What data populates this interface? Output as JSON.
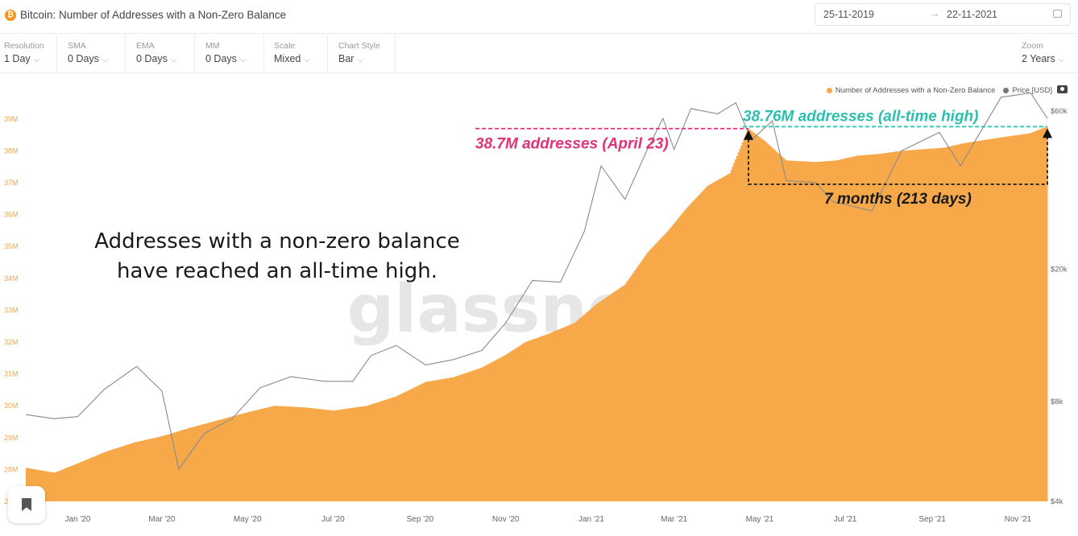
{
  "header": {
    "coin_glyph": "₿",
    "title": "Bitcoin: Number of Addresses with a Non-Zero Balance",
    "date_start": "25-11-2019",
    "date_arrow": "→",
    "date_end": "22-11-2021"
  },
  "controls": [
    {
      "label": "Resolution",
      "value": "1 Day"
    },
    {
      "label": "SMA",
      "value": "0 Days"
    },
    {
      "label": "EMA",
      "value": "0 Days"
    },
    {
      "label": "MM",
      "value": "0 Days"
    },
    {
      "label": "Scale",
      "value": "Mixed"
    },
    {
      "label": "Chart Style",
      "value": "Bar"
    }
  ],
  "zoom": {
    "label": "Zoom",
    "value": "2 Years"
  },
  "legend": [
    {
      "label": "Number of Addresses with a Non-Zero Balance",
      "color": "#f7a94a"
    },
    {
      "label": "Price [USD]",
      "color": "#777777"
    }
  ],
  "icons": [
    "bitcoin-icon",
    "calendar-icon",
    "chevron-down-icon",
    "camera-icon",
    "bookmark-icon"
  ],
  "chart_data": {
    "type": "bar",
    "title": "",
    "legend_position": "top-right",
    "grid": false,
    "watermark": "glassnode",
    "x_ticks": [
      "Jan '20",
      "Mar '20",
      "May '20",
      "Jul '20",
      "Sep '20",
      "Nov '20",
      "Jan '21",
      "Mar '21",
      "May '21",
      "Jul '21",
      "Sep '21",
      "Nov '21"
    ],
    "x_range": [
      "2019-11-25",
      "2021-11-22"
    ],
    "y_left": {
      "ticks": [
        "27M",
        "28M",
        "29M",
        "30M",
        "31M",
        "32M",
        "33M",
        "34M",
        "35M",
        "36M",
        "37M",
        "38M",
        "39M"
      ],
      "range": [
        27,
        39.4
      ],
      "unit": "M"
    },
    "y_right": {
      "ticks": [
        "$4k",
        "$8k",
        "$20k",
        "$60k"
      ],
      "scale": "log",
      "range": [
        4000,
        62000
      ]
    },
    "series": [
      {
        "name": "Number of Addresses with a Non-Zero Balance",
        "type": "bar",
        "color": "#f7a94a",
        "unit": "M",
        "points": [
          [
            "2019-11-25",
            28.05
          ],
          [
            "2019-12-15",
            27.9
          ],
          [
            "2020-01-01",
            28.2
          ],
          [
            "2020-01-20",
            28.55
          ],
          [
            "2020-02-10",
            28.85
          ],
          [
            "2020-03-01",
            29.05
          ],
          [
            "2020-03-20",
            29.3
          ],
          [
            "2020-04-10",
            29.55
          ],
          [
            "2020-05-01",
            29.8
          ],
          [
            "2020-05-20",
            30.0
          ],
          [
            "2020-06-10",
            29.95
          ],
          [
            "2020-07-01",
            29.85
          ],
          [
            "2020-07-25",
            30.0
          ],
          [
            "2020-08-15",
            30.3
          ],
          [
            "2020-09-05",
            30.75
          ],
          [
            "2020-09-25",
            30.9
          ],
          [
            "2020-10-15",
            31.2
          ],
          [
            "2020-11-01",
            31.6
          ],
          [
            "2020-11-15",
            32.0
          ],
          [
            "2020-12-01",
            32.25
          ],
          [
            "2020-12-20",
            32.6
          ],
          [
            "2021-01-05",
            33.2
          ],
          [
            "2021-01-25",
            33.8
          ],
          [
            "2021-02-10",
            34.8
          ],
          [
            "2021-02-25",
            35.5
          ],
          [
            "2021-03-10",
            36.2
          ],
          [
            "2021-03-25",
            36.9
          ],
          [
            "2021-04-10",
            37.3
          ],
          [
            "2021-04-23",
            38.7
          ],
          [
            "2021-05-05",
            38.3
          ],
          [
            "2021-05-20",
            37.7
          ],
          [
            "2021-06-10",
            37.65
          ],
          [
            "2021-06-25",
            37.7
          ],
          [
            "2021-07-10",
            37.85
          ],
          [
            "2021-07-25",
            37.9
          ],
          [
            "2021-08-10",
            38.0
          ],
          [
            "2021-08-25",
            38.05
          ],
          [
            "2021-09-10",
            38.1
          ],
          [
            "2021-09-25",
            38.25
          ],
          [
            "2021-10-10",
            38.35
          ],
          [
            "2021-10-25",
            38.45
          ],
          [
            "2021-11-10",
            38.55
          ],
          [
            "2021-11-22",
            38.76
          ]
        ]
      },
      {
        "name": "Price [USD]",
        "type": "line",
        "color": "#8a8a8a",
        "unit": "USD",
        "points": [
          [
            "2019-11-25",
            7300
          ],
          [
            "2019-12-15",
            7100
          ],
          [
            "2020-01-01",
            7200
          ],
          [
            "2020-01-20",
            8700
          ],
          [
            "2020-02-12",
            10200
          ],
          [
            "2020-03-01",
            8600
          ],
          [
            "2020-03-13",
            5000
          ],
          [
            "2020-03-31",
            6400
          ],
          [
            "2020-04-20",
            7100
          ],
          [
            "2020-05-10",
            8800
          ],
          [
            "2020-06-01",
            9500
          ],
          [
            "2020-06-25",
            9200
          ],
          [
            "2020-07-15",
            9200
          ],
          [
            "2020-07-28",
            11000
          ],
          [
            "2020-08-15",
            11800
          ],
          [
            "2020-09-05",
            10300
          ],
          [
            "2020-09-25",
            10700
          ],
          [
            "2020-10-15",
            11400
          ],
          [
            "2020-11-01",
            13800
          ],
          [
            "2020-11-20",
            18500
          ],
          [
            "2020-12-10",
            18300
          ],
          [
            "2020-12-27",
            26000
          ],
          [
            "2021-01-08",
            41000
          ],
          [
            "2021-01-25",
            32500
          ],
          [
            "2021-02-10",
            46000
          ],
          [
            "2021-02-21",
            57000
          ],
          [
            "2021-03-01",
            46000
          ],
          [
            "2021-03-13",
            61000
          ],
          [
            "2021-04-01",
            58800
          ],
          [
            "2021-04-14",
            63500
          ],
          [
            "2021-04-25",
            49000
          ],
          [
            "2021-05-10",
            56000
          ],
          [
            "2021-05-20",
            37000
          ],
          [
            "2021-06-10",
            36500
          ],
          [
            "2021-06-22",
            32000
          ],
          [
            "2021-07-20",
            30000
          ],
          [
            "2021-08-10",
            45500
          ],
          [
            "2021-09-06",
            51700
          ],
          [
            "2021-09-21",
            41000
          ],
          [
            "2021-10-10",
            56000
          ],
          [
            "2021-10-20",
            66000
          ],
          [
            "2021-11-10",
            68000
          ],
          [
            "2021-11-22",
            57000
          ]
        ]
      }
    ],
    "annotations": [
      {
        "text": "38.7M addresses (April 23)",
        "date": "2021-04-23",
        "value": 38.7,
        "color": "#e0337a",
        "style": "dashed-line"
      },
      {
        "text": "38.76M addresses (all-time high)",
        "date": "2021-11-22",
        "value": 38.76,
        "color": "#2bbfae",
        "style": "dashed-line"
      },
      {
        "text": "7 months (213 days)",
        "from": "2021-04-23",
        "to": "2021-11-22",
        "color": "#1a1a1a",
        "style": "dashed-bracket"
      },
      {
        "text": "Addresses with a non-zero balance\nhave reached an all-time high.",
        "color": "#1a1a1a",
        "style": "caption"
      }
    ]
  }
}
